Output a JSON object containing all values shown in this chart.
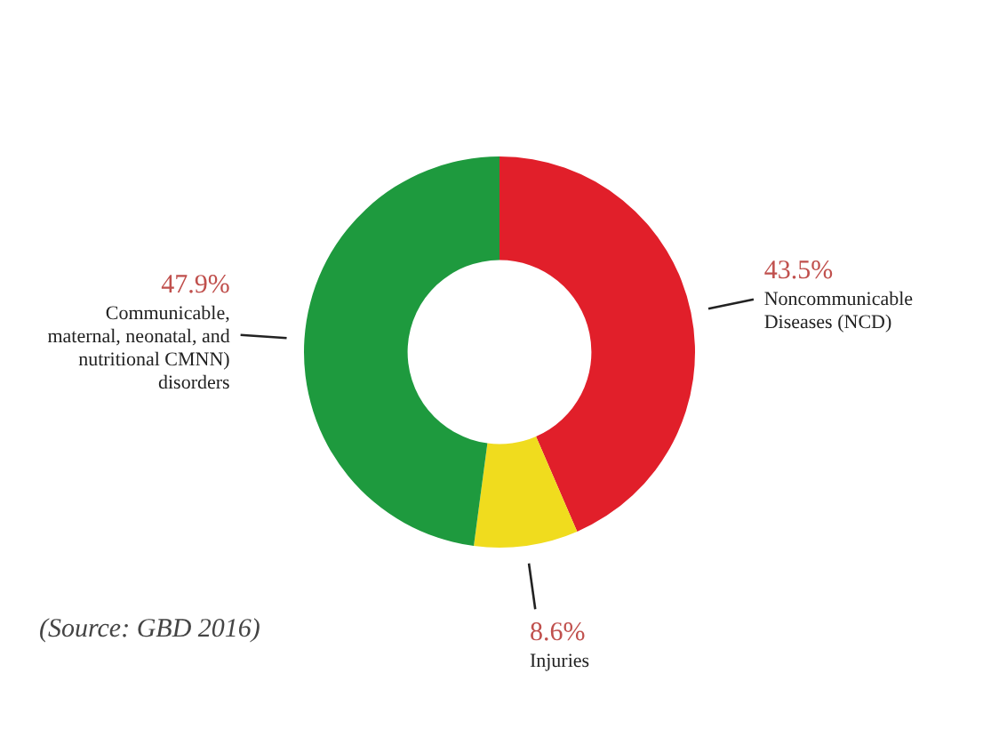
{
  "chart_data": {
    "type": "donut",
    "categories": [
      "Noncommunicable Diseases (NCD)",
      "Injuries",
      "Communicable, maternal, neonatal, and nutritional CMNN) disorders"
    ],
    "values": [
      43.5,
      8.6,
      47.9
    ],
    "value_labels": [
      "43.5%",
      "8.6%",
      "47.9%"
    ],
    "colors": [
      "#e11f2a",
      "#f0dc1e",
      "#1e9a3e"
    ],
    "annotations": [
      "(Source: GBD 2016)"
    ],
    "legend": false
  }
}
